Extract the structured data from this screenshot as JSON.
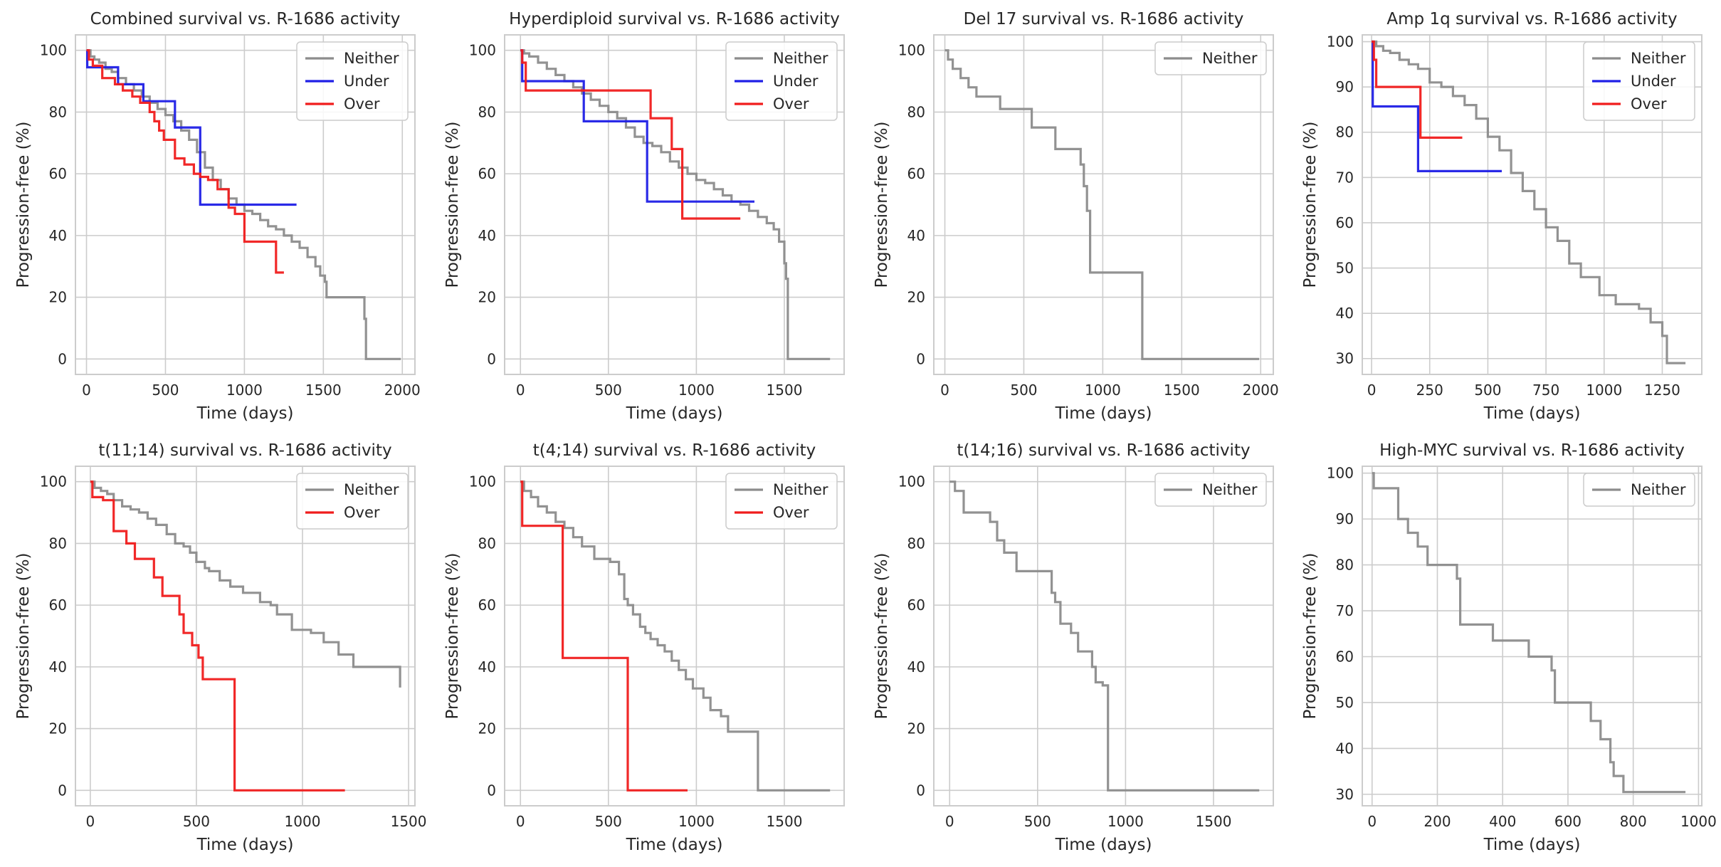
{
  "colors": {
    "Neither": "#8c8c8c",
    "Under": "#1f1fe6",
    "Over": "#f01c1c",
    "grid": "#cccccc"
  },
  "chart_data": [
    {
      "type": "line",
      "title": "Combined survival vs. R-1686 activity",
      "xlabel": "Time (days)",
      "ylabel": "Progression-free (%)",
      "xlim": [
        -70,
        2080
      ],
      "ylim": [
        -5,
        105
      ],
      "xticks": [
        0,
        500,
        1000,
        1500,
        2000
      ],
      "yticks": [
        0,
        20,
        40,
        60,
        80,
        100
      ],
      "grid": true,
      "legend_position": "top-right",
      "legend": [
        "Neither",
        "Under",
        "Over"
      ],
      "series": [
        {
          "name": "Neither",
          "step": true,
          "x": [
            0,
            25,
            50,
            80,
            120,
            160,
            200,
            250,
            300,
            350,
            400,
            450,
            500,
            550,
            600,
            650,
            700,
            750,
            800,
            850,
            900,
            950,
            1000,
            1050,
            1100,
            1150,
            1200,
            1250,
            1300,
            1350,
            1400,
            1450,
            1480,
            1510,
            1520,
            1760,
            1770,
            1990
          ],
          "y": [
            100,
            98,
            97,
            96,
            94,
            93,
            91,
            89,
            87,
            85,
            83,
            81,
            79,
            77,
            74,
            71,
            67,
            62,
            58,
            55,
            52,
            50,
            48,
            47,
            45,
            43,
            42,
            40,
            38,
            36,
            33,
            30,
            27,
            25,
            20,
            13,
            0,
            0
          ]
        },
        {
          "name": "Under",
          "step": true,
          "x": [
            0,
            5,
            200,
            360,
            560,
            720,
            1330
          ],
          "y": [
            100,
            94.5,
            89,
            83.5,
            75,
            50,
            50
          ]
        },
        {
          "name": "Over",
          "step": true,
          "x": [
            0,
            15,
            40,
            100,
            180,
            230,
            290,
            340,
            400,
            430,
            460,
            490,
            560,
            620,
            680,
            720,
            770,
            830,
            900,
            940,
            1000,
            1200,
            1250
          ],
          "y": [
            100,
            97,
            95,
            91,
            89,
            87,
            85,
            83,
            80,
            77,
            74,
            71,
            65,
            63,
            60,
            59,
            58,
            55,
            49,
            47,
            38,
            28,
            28
          ]
        }
      ]
    },
    {
      "type": "line",
      "title": "Hyperdiploid survival vs. R-1686 activity",
      "xlabel": "Time (days)",
      "ylabel": "Progression-free (%)",
      "xlim": [
        -90,
        1840
      ],
      "ylim": [
        -5,
        105
      ],
      "xticks": [
        0,
        500,
        1000,
        1500
      ],
      "yticks": [
        0,
        20,
        40,
        60,
        80,
        100
      ],
      "grid": true,
      "legend_position": "top-right",
      "legend": [
        "Neither",
        "Under",
        "Over"
      ],
      "series": [
        {
          "name": "Neither",
          "step": true,
          "x": [
            0,
            20,
            50,
            100,
            150,
            200,
            250,
            300,
            350,
            400,
            450,
            500,
            550,
            600,
            650,
            700,
            750,
            800,
            850,
            900,
            950,
            1000,
            1050,
            1100,
            1150,
            1200,
            1250,
            1300,
            1350,
            1400,
            1440,
            1470,
            1500,
            1510,
            1520,
            1760
          ],
          "y": [
            100,
            99,
            98,
            96,
            94,
            92,
            90,
            88,
            86,
            84,
            82,
            80,
            78,
            75,
            72,
            70,
            69,
            67,
            64,
            62,
            60,
            58,
            57,
            55,
            53,
            51,
            50,
            48,
            46,
            44,
            42,
            38,
            31,
            26,
            0,
            0
          ]
        },
        {
          "name": "Under",
          "step": true,
          "x": [
            0,
            10,
            360,
            720,
            1330
          ],
          "y": [
            100,
            90,
            77,
            51,
            51
          ]
        },
        {
          "name": "Over",
          "step": true,
          "x": [
            0,
            10,
            30,
            500,
            740,
            860,
            920,
            1250
          ],
          "y": [
            100,
            96,
            87,
            87,
            78,
            68,
            45.5,
            45.5
          ]
        }
      ]
    },
    {
      "type": "line",
      "title": "Del 17 survival vs. R-1686 activity",
      "xlabel": "Time (days)",
      "ylabel": "Progression-free (%)",
      "xlim": [
        -70,
        2080
      ],
      "ylim": [
        -5,
        105
      ],
      "xticks": [
        0,
        500,
        1000,
        1500,
        2000
      ],
      "yticks": [
        0,
        20,
        40,
        60,
        80,
        100
      ],
      "grid": true,
      "legend_position": "top-right",
      "legend": [
        "Neither"
      ],
      "series": [
        {
          "name": "Neither",
          "step": true,
          "x": [
            0,
            20,
            50,
            100,
            150,
            200,
            350,
            550,
            700,
            860,
            880,
            900,
            920,
            1250,
            1990
          ],
          "y": [
            100,
            97,
            94,
            91,
            88,
            85,
            81,
            75,
            68,
            63,
            56,
            48,
            28,
            0,
            0
          ]
        }
      ]
    },
    {
      "type": "line",
      "title": "Amp 1q survival vs. R-1686 activity",
      "xlabel": "Time (days)",
      "ylabel": "Progression-free (%)",
      "xlim": [
        -40,
        1420
      ],
      "ylim": [
        26.5,
        101.5
      ],
      "xticks": [
        0,
        250,
        500,
        750,
        1000,
        1250
      ],
      "yticks": [
        30,
        40,
        50,
        60,
        70,
        80,
        90,
        100
      ],
      "grid": true,
      "legend_position": "top-right",
      "legend": [
        "Neither",
        "Under",
        "Over"
      ],
      "series": [
        {
          "name": "Neither",
          "step": true,
          "x": [
            0,
            20,
            50,
            80,
            120,
            160,
            200,
            250,
            300,
            350,
            400,
            450,
            500,
            550,
            600,
            650,
            700,
            750,
            800,
            850,
            900,
            980,
            1050,
            1150,
            1200,
            1250,
            1270,
            1350
          ],
          "y": [
            100,
            99,
            98,
            97.5,
            96,
            95,
            94,
            91,
            90,
            88,
            86,
            83,
            79,
            76,
            71,
            67,
            63,
            59,
            56,
            51,
            48,
            44,
            42,
            41,
            38,
            35,
            29,
            29
          ]
        },
        {
          "name": "Under",
          "step": true,
          "x": [
            0,
            5,
            200,
            560
          ],
          "y": [
            100,
            85.7,
            71.4,
            71.4
          ]
        },
        {
          "name": "Over",
          "step": true,
          "x": [
            0,
            10,
            20,
            210,
            390
          ],
          "y": [
            100,
            96,
            90,
            78.8,
            78.8
          ]
        }
      ]
    },
    {
      "type": "line",
      "title": "t(11;14) survival vs. R-1686 activity",
      "xlabel": "Time (days)",
      "ylabel": "Progression-free (%)",
      "xlim": [
        -70,
        1530
      ],
      "ylim": [
        -5,
        105
      ],
      "xticks": [
        0,
        500,
        1000,
        1500
      ],
      "yticks": [
        0,
        20,
        40,
        60,
        80,
        100
      ],
      "grid": true,
      "legend_position": "top-right",
      "legend": [
        "Neither",
        "Over"
      ],
      "series": [
        {
          "name": "Neither",
          "step": true,
          "x": [
            0,
            20,
            50,
            80,
            110,
            150,
            190,
            230,
            270,
            310,
            360,
            400,
            440,
            470,
            500,
            540,
            560,
            610,
            660,
            720,
            800,
            850,
            880,
            950,
            1040,
            1100,
            1170,
            1240,
            1460
          ],
          "y": [
            100,
            98,
            97,
            96,
            94,
            92,
            91,
            90,
            88,
            86,
            83,
            80,
            79,
            77,
            74,
            72,
            71,
            68,
            66,
            64,
            61,
            60,
            57,
            52,
            51,
            48,
            44,
            40,
            33.3
          ]
        },
        {
          "name": "Over",
          "step": true,
          "x": [
            0,
            10,
            60,
            110,
            170,
            210,
            300,
            340,
            420,
            440,
            480,
            510,
            530,
            680,
            1200
          ],
          "y": [
            100,
            95,
            94,
            84,
            80,
            75,
            69,
            63,
            57,
            51,
            47,
            43,
            36,
            0,
            0
          ]
        }
      ]
    },
    {
      "type": "line",
      "title": "t(4;14) survival vs. R-1686 activity",
      "xlabel": "Time (days)",
      "ylabel": "Progression-free (%)",
      "xlim": [
        -90,
        1840
      ],
      "ylim": [
        -5,
        105
      ],
      "xticks": [
        0,
        500,
        1000,
        1500
      ],
      "yticks": [
        0,
        20,
        40,
        60,
        80,
        100
      ],
      "grid": true,
      "legend_position": "top-right",
      "legend": [
        "Neither",
        "Over"
      ],
      "series": [
        {
          "name": "Neither",
          "step": true,
          "x": [
            0,
            20,
            60,
            100,
            150,
            200,
            250,
            300,
            350,
            420,
            510,
            560,
            590,
            610,
            640,
            680,
            710,
            740,
            780,
            820,
            860,
            900,
            940,
            980,
            1040,
            1080,
            1140,
            1180,
            1350,
            1760
          ],
          "y": [
            100,
            97,
            95,
            92,
            90,
            87,
            85,
            82,
            79,
            75,
            74,
            70,
            62,
            60,
            57,
            53,
            51,
            49,
            47,
            45,
            42,
            39,
            36,
            33,
            30,
            26,
            24,
            19,
            0,
            0
          ]
        },
        {
          "name": "Over",
          "step": true,
          "x": [
            0,
            10,
            240,
            610,
            950
          ],
          "y": [
            100,
            85.7,
            42.9,
            0,
            0
          ]
        }
      ]
    },
    {
      "type": "line",
      "title": "t(14;16) survival vs. R-1686 activity",
      "xlabel": "Time (days)",
      "ylabel": "Progression-free (%)",
      "xlim": [
        -90,
        1840
      ],
      "ylim": [
        -5,
        105
      ],
      "xticks": [
        0,
        500,
        1000,
        1500
      ],
      "yticks": [
        0,
        20,
        40,
        60,
        80,
        100
      ],
      "grid": true,
      "legend_position": "top-right",
      "legend": [
        "Neither"
      ],
      "series": [
        {
          "name": "Neither",
          "step": true,
          "x": [
            0,
            30,
            80,
            230,
            270,
            310,
            380,
            560,
            580,
            600,
            630,
            690,
            730,
            810,
            830,
            870,
            900,
            1760
          ],
          "y": [
            100,
            97,
            90,
            87,
            81,
            77,
            71,
            71,
            64,
            61,
            54,
            51,
            45,
            40,
            35,
            34,
            0,
            0
          ]
        }
      ]
    },
    {
      "type": "line",
      "title": "High-MYC survival vs. R-1686 activity",
      "xlabel": "Time (days)",
      "ylabel": "Progression-free (%)",
      "xlim": [
        -30,
        1010
      ],
      "ylim": [
        27.5,
        101.5
      ],
      "xticks": [
        0,
        200,
        400,
        600,
        800,
        1000
      ],
      "yticks": [
        30,
        40,
        50,
        60,
        70,
        80,
        90,
        100
      ],
      "grid": true,
      "legend_position": "top-right",
      "legend": [
        "Neither"
      ],
      "series": [
        {
          "name": "Neither",
          "step": true,
          "x": [
            0,
            5,
            80,
            110,
            140,
            170,
            260,
            270,
            370,
            480,
            550,
            560,
            670,
            700,
            730,
            740,
            770,
            960
          ],
          "y": [
            100,
            96.7,
            90,
            87,
            84,
            80,
            77,
            67,
            63.5,
            60,
            57,
            50,
            46,
            42,
            37,
            34,
            30.5,
            30.5
          ]
        }
      ]
    }
  ]
}
